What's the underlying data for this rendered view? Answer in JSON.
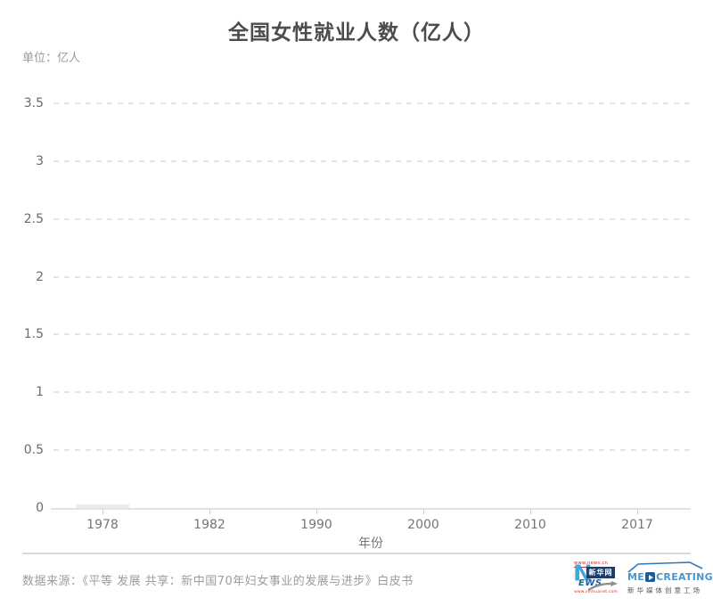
{
  "chart_data": {
    "type": "bar",
    "title": "全国女性就业人数（亿人）",
    "unit_label": "单位：亿人",
    "xlabel": "年份",
    "ylabel": "",
    "categories": [
      "1978",
      "1982",
      "1990",
      "2000",
      "2010",
      "2017"
    ],
    "values": [
      0.03,
      0,
      0,
      0,
      0,
      0
    ],
    "ylim": [
      0,
      3.5
    ],
    "yticks": [
      0,
      0.5,
      1,
      1.5,
      2,
      2.5,
      3,
      3.5
    ],
    "ytick_labels": [
      "0",
      "0.5",
      "1",
      "1.5",
      "2",
      "2.5",
      "3",
      "3.5"
    ],
    "grid": "horizontal-dashed",
    "legend": "none",
    "bar_color": "#ececec",
    "gridline_color": "#e5e5e5",
    "axis_color": "#e2e2e2"
  },
  "footer": {
    "source": "数据来源：《平等 发展 共享：新中国70年妇女事业的发展与进步》白皮书",
    "logos": {
      "xinhua": {
        "url_top": "www.news.cn",
        "n_letter": "N",
        "brand": "新华网",
        "ews": "EWS",
        "url_bottom": "www.xinhuanet.com",
        "red": "#cc2229",
        "light_blue": "#3fa9dc",
        "navy": "#1d3e68",
        "blue": "#1c5fa5"
      },
      "medcreating": {
        "brand_me": "ME",
        "brand_creating": "CREATING",
        "subtitle": "新华媒体创意工场",
        "blue": "#4c95c8",
        "navy": "#1d5c94"
      }
    }
  }
}
